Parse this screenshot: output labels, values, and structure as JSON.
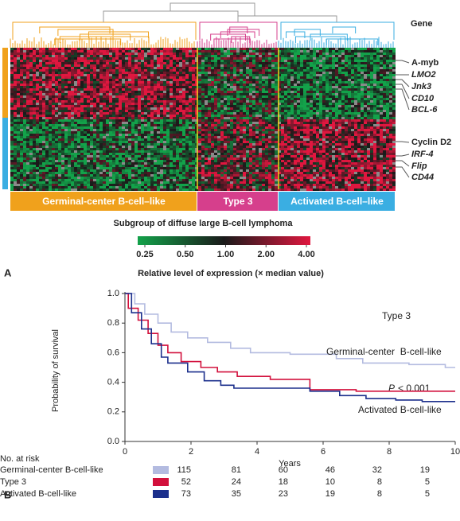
{
  "panel_labels": [
    "A",
    "B"
  ],
  "chart_data": [
    {
      "type": "heatmap",
      "gene_header": "Gene",
      "genes": [
        "A-myb",
        "LMO2",
        "Jnk3",
        "CD10",
        "BCL-6",
        "Cyclin D2",
        "IRF-4",
        "Flip",
        "CD44"
      ],
      "groups": [
        "Germinal-center B-cell–like",
        "Type 3",
        "Activated B-cell–like"
      ],
      "group_colors": [
        "#f0a11c",
        "#d63f8c",
        "#3aaee2"
      ],
      "xlabel": "Subgroup of diffuse large B-cell lymphoma",
      "colorbar_title": "Relative level of expression (× median value)",
      "colorbar_log": true,
      "colorbar_lim": [
        0.25,
        4
      ],
      "colorbar_ticks": [
        {
          "value": 0.25,
          "label": "0.25"
        },
        {
          "value": 0.5,
          "label": "0.50"
        },
        {
          "value": 1,
          "label": "1.00"
        },
        {
          "value": 2,
          "label": "2.00"
        },
        {
          "value": 4,
          "label": "4.00"
        }
      ],
      "colorbar_colors": [
        "#13a24a",
        "#1a1a1a",
        "#e0173f"
      ]
    },
    {
      "type": "line",
      "xlabel": "Years",
      "ylabel": "Probability of survival",
      "xlim": [
        0,
        10
      ],
      "xticks": [
        0,
        2,
        4,
        6,
        8,
        10
      ],
      "ylim": [
        0,
        1
      ],
      "yticks": [
        {
          "value": 0,
          "label": "0.0"
        },
        {
          "value": 0.2,
          "label": "0.2"
        },
        {
          "value": 0.4,
          "label": "0.4"
        },
        {
          "value": 0.6,
          "label": "0.6"
        },
        {
          "value": 0.8,
          "label": "0.8"
        },
        {
          "value": 1,
          "label": "1.0"
        }
      ],
      "annotations": [
        "P",
        "< 0.001"
      ],
      "curve_labels": [
        "Germinal-center  B-cell-like",
        "Type 3",
        "Activated B-cell-like"
      ],
      "series": [
        {
          "name": "Germinal-center B-cell-like",
          "color": "#b3bbe0",
          "x": [
            0,
            0.3,
            0.3,
            0.6,
            0.6,
            1,
            1,
            1.4,
            1.4,
            1.9,
            1.9,
            2.5,
            2.5,
            3.2,
            3.2,
            3.8,
            3.8,
            5,
            5,
            6.4,
            6.4,
            7.2,
            7.2,
            8.6,
            8.6,
            9.7,
            9.7,
            10
          ],
          "values": [
            1,
            1,
            0.93,
            0.93,
            0.86,
            0.86,
            0.8,
            0.8,
            0.74,
            0.74,
            0.7,
            0.7,
            0.67,
            0.67,
            0.63,
            0.63,
            0.6,
            0.6,
            0.59,
            0.59,
            0.56,
            0.56,
            0.53,
            0.53,
            0.52,
            0.52,
            0.5,
            0.5
          ]
        },
        {
          "name": "Type 3",
          "color": "#d2103c",
          "x": [
            0,
            0.1,
            0.1,
            0.4,
            0.4,
            0.7,
            0.7,
            1,
            1,
            1.3,
            1.3,
            1.7,
            1.7,
            2.3,
            2.3,
            2.8,
            2.8,
            3.4,
            3.4,
            4.4,
            4.4,
            5.6,
            5.6,
            7,
            7,
            10
          ],
          "values": [
            1,
            1,
            0.9,
            0.9,
            0.82,
            0.82,
            0.73,
            0.73,
            0.65,
            0.65,
            0.6,
            0.6,
            0.54,
            0.54,
            0.5,
            0.5,
            0.47,
            0.47,
            0.44,
            0.44,
            0.42,
            0.42,
            0.35,
            0.35,
            0.34,
            0.34
          ]
        },
        {
          "name": "Activated B-cell-like",
          "color": "#1b2f8c",
          "x": [
            0,
            0.2,
            0.2,
            0.5,
            0.5,
            0.8,
            0.8,
            1.1,
            1.1,
            1.3,
            1.3,
            1.9,
            1.9,
            2.4,
            2.4,
            2.9,
            2.9,
            3.3,
            3.3,
            5.6,
            5.6,
            6.5,
            6.5,
            7.3,
            7.3,
            8.2,
            8.2,
            9,
            9,
            10
          ],
          "values": [
            1,
            1,
            0.87,
            0.87,
            0.76,
            0.76,
            0.66,
            0.66,
            0.57,
            0.57,
            0.53,
            0.53,
            0.47,
            0.47,
            0.41,
            0.41,
            0.38,
            0.38,
            0.36,
            0.36,
            0.34,
            0.34,
            0.31,
            0.31,
            0.29,
            0.29,
            0.28,
            0.28,
            0.27,
            0.27
          ]
        }
      ],
      "risk_table": {
        "title": "No. at risk",
        "counts": [
          [
            115,
            81,
            60,
            46,
            32,
            19
          ],
          [
            52,
            24,
            18,
            10,
            8,
            5
          ],
          [
            73,
            35,
            23,
            19,
            8,
            5
          ]
        ]
      }
    }
  ]
}
